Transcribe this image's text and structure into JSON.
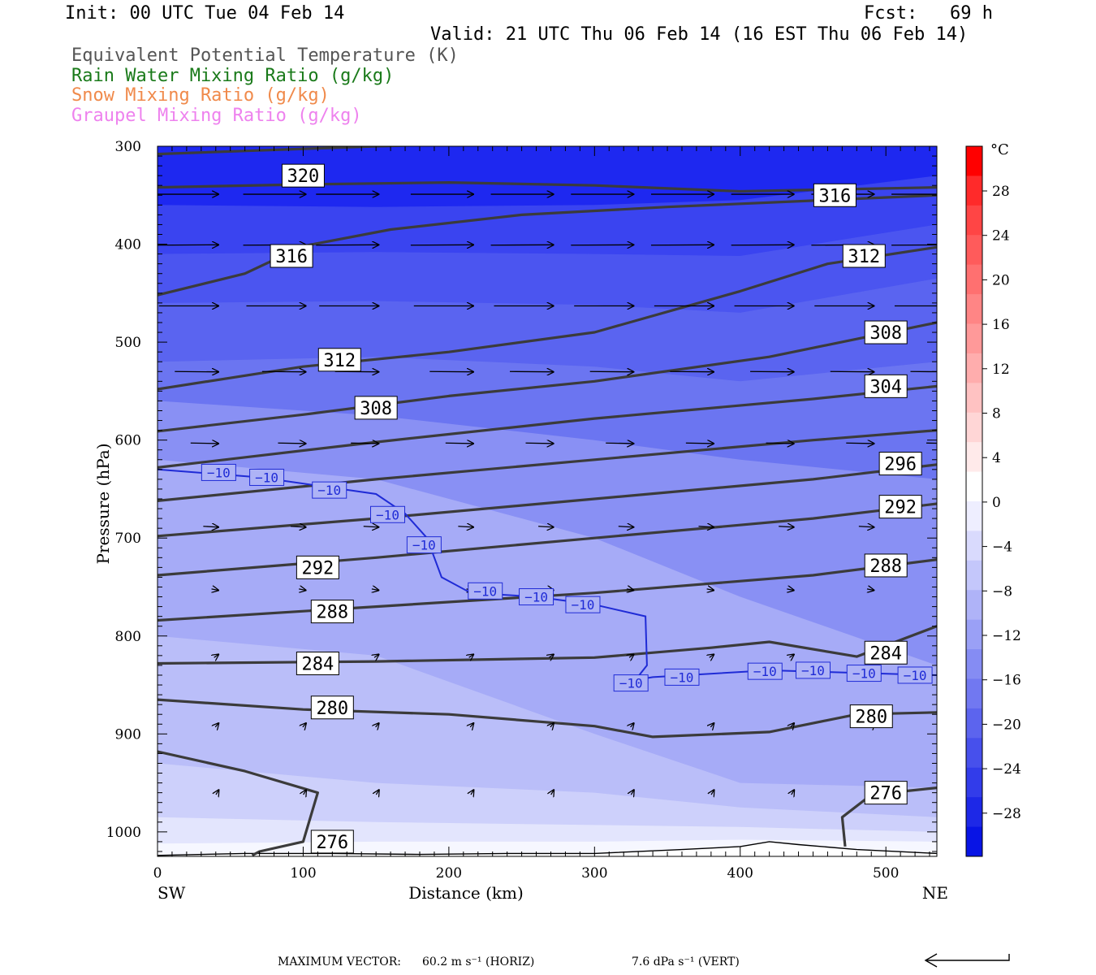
{
  "header": {
    "init": "Init: 00 UTC Tue 04 Feb 14",
    "fcst": "Fcst:   69 h",
    "valid": "Valid: 21 UTC Thu 06 Feb 14 (16 EST Thu 06 Feb 14)"
  },
  "legend": [
    {
      "label": "Equivalent Potential Temperature (K)",
      "color": "#444444"
    },
    {
      "label": "Rain Water Mixing Ratio (g/kg)",
      "color": "#1a7a1a"
    },
    {
      "label": "Snow Mixing Ratio (g/kg)",
      "color": "#f08a4b"
    },
    {
      "label": "Graupel Mixing Ratio (g/kg)",
      "color": "#ee82ee"
    }
  ],
  "colorbar": {
    "unit": "°C",
    "labels": [
      "28",
      "24",
      "20",
      "16",
      "12",
      "8",
      "4",
      "0",
      "−4",
      "−8",
      "−12",
      "−16",
      "−20",
      "−24",
      "−28"
    ]
  },
  "footer": {
    "max_vector_label": "MAXIMUM VECTOR:",
    "horiz": "60.2 m s⁻¹ (HORIZ)",
    "vert": "7.6 dPa s⁻¹ (VERT)"
  },
  "chart_data": {
    "type": "contour",
    "xlabel": "Distance (km)",
    "ylabel": "Pressure (hPa)",
    "xlim": [
      0,
      535
    ],
    "ylim": [
      1025,
      300
    ],
    "x_ticks": [
      "0",
      "100",
      "200",
      "300",
      "400",
      "500"
    ],
    "y_ticks": [
      "300",
      "400",
      "500",
      "600",
      "700",
      "800",
      "900",
      "1000"
    ],
    "x_end_labels": {
      "left": "SW",
      "right": "NE"
    },
    "theta_e_contours": [
      {
        "value": 320,
        "points": [
          [
            0,
            308
          ],
          [
            150,
            300
          ],
          [
            300,
            294
          ],
          [
            450,
            290
          ],
          [
            535,
            284
          ]
        ],
        "labels": [
          {
            "text": "320",
            "x": 100,
            "p": 330
          }
        ]
      },
      {
        "value": 316,
        "points": [
          [
            0,
            342
          ],
          [
            100,
            339
          ],
          [
            200,
            337
          ],
          [
            300,
            340
          ],
          [
            400,
            346
          ],
          [
            535,
            342
          ]
        ],
        "labels": [
          {
            "text": "316",
            "x": 465,
            "p": 350
          }
        ]
      },
      {
        "value": 316,
        "points": [
          [
            0,
            452
          ],
          [
            60,
            430
          ],
          [
            100,
            402
          ],
          [
            160,
            385
          ],
          [
            250,
            370
          ],
          [
            350,
            362
          ],
          [
            535,
            350
          ]
        ],
        "labels": [
          {
            "text": "316",
            "x": 92,
            "p": 412
          }
        ]
      },
      {
        "value": 312,
        "points": [
          [
            0,
            548
          ],
          [
            100,
            525
          ],
          [
            200,
            510
          ],
          [
            300,
            490
          ],
          [
            400,
            448
          ],
          [
            460,
            420
          ],
          [
            535,
            403
          ]
        ],
        "labels": [
          {
            "text": "312",
            "x": 125,
            "p": 518
          },
          {
            "text": "312",
            "x": 485,
            "p": 412
          }
        ]
      },
      {
        "value": 308,
        "points": [
          [
            0,
            591
          ],
          [
            100,
            574
          ],
          [
            200,
            555
          ],
          [
            300,
            540
          ],
          [
            420,
            515
          ],
          [
            535,
            480
          ]
        ],
        "labels": [
          {
            "text": "308",
            "x": 150,
            "p": 567
          },
          {
            "text": "308",
            "x": 500,
            "p": 490
          }
        ]
      },
      {
        "value": 304,
        "points": [
          [
            0,
            628
          ],
          [
            150,
            602
          ],
          [
            300,
            578
          ],
          [
            450,
            558
          ],
          [
            535,
            545
          ]
        ],
        "labels": [
          {
            "text": "304",
            "x": 500,
            "p": 545
          }
        ]
      },
      {
        "value": 300,
        "points": [
          [
            0,
            662
          ],
          [
            150,
            640
          ],
          [
            300,
            620
          ],
          [
            450,
            600
          ],
          [
            535,
            590
          ]
        ],
        "labels": []
      },
      {
        "value": 296,
        "points": [
          [
            0,
            698
          ],
          [
            150,
            680
          ],
          [
            300,
            660
          ],
          [
            450,
            640
          ],
          [
            535,
            625
          ]
        ],
        "labels": [
          {
            "text": "296",
            "x": 510,
            "p": 624
          }
        ]
      },
      {
        "value": 292,
        "points": [
          [
            0,
            738
          ],
          [
            150,
            720
          ],
          [
            300,
            700
          ],
          [
            450,
            680
          ],
          [
            535,
            665
          ]
        ],
        "labels": [
          {
            "text": "292",
            "x": 110,
            "p": 730
          },
          {
            "text": "292",
            "x": 510,
            "p": 668
          }
        ]
      },
      {
        "value": 288,
        "points": [
          [
            0,
            784
          ],
          [
            150,
            770
          ],
          [
            300,
            756
          ],
          [
            450,
            738
          ],
          [
            535,
            722
          ]
        ],
        "labels": [
          {
            "text": "288",
            "x": 120,
            "p": 775
          },
          {
            "text": "288",
            "x": 500,
            "p": 728
          }
        ]
      },
      {
        "value": 284,
        "points": [
          [
            0,
            828
          ],
          [
            150,
            826
          ],
          [
            300,
            822
          ],
          [
            380,
            812
          ],
          [
            420,
            806
          ],
          [
            480,
            821
          ],
          [
            535,
            790
          ]
        ],
        "labels": [
          {
            "text": "284",
            "x": 110,
            "p": 828
          },
          {
            "text": "284",
            "x": 500,
            "p": 817
          }
        ]
      },
      {
        "value": 280,
        "points": [
          [
            0,
            865
          ],
          [
            100,
            875
          ],
          [
            200,
            880
          ],
          [
            300,
            892
          ],
          [
            340,
            903
          ],
          [
            420,
            898
          ],
          [
            480,
            880
          ],
          [
            535,
            878
          ]
        ],
        "labels": [
          {
            "text": "280",
            "x": 120,
            "p": 873
          },
          {
            "text": "280",
            "x": 490,
            "p": 882
          }
        ]
      },
      {
        "value": 276,
        "points": [
          [
            0,
            918
          ],
          [
            60,
            938
          ],
          [
            110,
            960
          ],
          [
            100,
            1010
          ],
          [
            70,
            1020
          ],
          [
            65,
            1024
          ]
        ],
        "labels": [
          {
            "text": "276",
            "x": 120,
            "p": 1010
          }
        ]
      },
      {
        "value": 276,
        "points": [
          [
            472,
            1015
          ],
          [
            470,
            985
          ],
          [
            490,
            962
          ],
          [
            535,
            955
          ]
        ],
        "labels": [
          {
            "text": "276",
            "x": 500,
            "p": 960
          }
        ]
      }
    ],
    "temperature_contour": {
      "value": -10,
      "points": [
        [
          0,
          630
        ],
        [
          70,
          638
        ],
        [
          150,
          655
        ],
        [
          170,
          675
        ],
        [
          185,
          700
        ],
        [
          195,
          740
        ],
        [
          215,
          756
        ],
        [
          260,
          760
        ],
        [
          300,
          768
        ],
        [
          335,
          780
        ],
        [
          336,
          830
        ],
        [
          328,
          845
        ],
        [
          340,
          842
        ],
        [
          420,
          835
        ],
        [
          535,
          840
        ]
      ],
      "labels": [
        {
          "text": "−10",
          "x": 42,
          "p": 633
        },
        {
          "text": "−10",
          "x": 75,
          "p": 638
        },
        {
          "text": "−10",
          "x": 118,
          "p": 651
        },
        {
          "text": "−10",
          "x": 158,
          "p": 676
        },
        {
          "text": "−10",
          "x": 183,
          "p": 707
        },
        {
          "text": "−10",
          "x": 225,
          "p": 754
        },
        {
          "text": "−10",
          "x": 260,
          "p": 760
        },
        {
          "text": "−10",
          "x": 292,
          "p": 768
        },
        {
          "text": "−10",
          "x": 325,
          "p": 848
        },
        {
          "text": "−10",
          "x": 360,
          "p": 842
        },
        {
          "text": "−10",
          "x": 417,
          "p": 836
        },
        {
          "text": "−10",
          "x": 450,
          "p": 835
        },
        {
          "text": "−10",
          "x": 485,
          "p": 838
        },
        {
          "text": "−10",
          "x": 520,
          "p": 840
        }
      ]
    },
    "wind_rows": [
      {
        "p": 349,
        "u": 1.0,
        "v": 0.0
      },
      {
        "p": 401,
        "u": 1.0,
        "v": -0.02
      },
      {
        "p": 463,
        "u": 0.95,
        "v": 0.0
      },
      {
        "p": 530,
        "u": 0.7,
        "v": 0.02
      },
      {
        "p": 603,
        "u": 0.45,
        "v": 0.03
      },
      {
        "p": 688,
        "u": 0.25,
        "v": 0.05
      },
      {
        "p": 752,
        "u": 0.12,
        "v": 0.08
      },
      {
        "p": 822,
        "u": 0.08,
        "v": -0.2
      },
      {
        "p": 893,
        "u": 0.06,
        "v": -0.25
      },
      {
        "p": 962,
        "u": 0.05,
        "v": -0.3
      }
    ],
    "wind_x": [
      20,
      80,
      130,
      195,
      250,
      305,
      360,
      415,
      470,
      525
    ],
    "terrain_top": [
      [
        0,
        1024
      ],
      [
        60,
        1022
      ],
      [
        120,
        1022
      ],
      [
        180,
        1023
      ],
      [
        240,
        1022
      ],
      [
        300,
        1022
      ],
      [
        360,
        1018
      ],
      [
        400,
        1015
      ],
      [
        420,
        1010
      ],
      [
        440,
        1013
      ],
      [
        480,
        1018
      ],
      [
        535,
        1022
      ]
    ],
    "temperature_bands": [
      {
        "t": -32,
        "color": "#1e28f0",
        "top": [
          [
            0,
            300
          ],
          [
            535,
            300
          ]
        ],
        "bottom": [
          [
            0,
            360
          ],
          [
            150,
            362
          ],
          [
            300,
            360
          ],
          [
            400,
            355
          ],
          [
            535,
            330
          ]
        ]
      },
      {
        "t": -28,
        "color": "#3a44f0",
        "bottom": [
          [
            0,
            410
          ],
          [
            150,
            408
          ],
          [
            300,
            410
          ],
          [
            400,
            412
          ],
          [
            535,
            380
          ]
        ]
      },
      {
        "t": -24,
        "color": "#4b55f0",
        "bottom": [
          [
            0,
            460
          ],
          [
            150,
            458
          ],
          [
            300,
            462
          ],
          [
            400,
            470
          ],
          [
            535,
            435
          ]
        ]
      },
      {
        "t": -20,
        "color": "#5a64f0",
        "bottom": [
          [
            0,
            520
          ],
          [
            150,
            515
          ],
          [
            300,
            525
          ],
          [
            400,
            540
          ],
          [
            535,
            520
          ]
        ]
      },
      {
        "t": -16,
        "color": "#6b75f1",
        "bottom": [
          [
            0,
            560
          ],
          [
            150,
            575
          ],
          [
            300,
            600
          ],
          [
            400,
            620
          ],
          [
            535,
            640
          ]
        ]
      },
      {
        "t": -12,
        "color": "#8990f4",
        "bottom": [
          [
            0,
            620
          ],
          [
            150,
            640
          ],
          [
            300,
            700
          ],
          [
            400,
            760
          ],
          [
            535,
            830
          ]
        ]
      },
      {
        "t": -8,
        "color": "#a6abf7",
        "bottom": [
          [
            0,
            800
          ],
          [
            150,
            820
          ],
          [
            300,
            900
          ],
          [
            400,
            950
          ],
          [
            535,
            955
          ]
        ]
      },
      {
        "t": -6,
        "color": "#babef9",
        "bottom": [
          [
            0,
            930
          ],
          [
            150,
            950
          ],
          [
            300,
            960
          ],
          [
            400,
            975
          ],
          [
            535,
            985
          ]
        ]
      },
      {
        "t": -4,
        "color": "#cdd0fb",
        "bottom": [
          [
            0,
            985
          ],
          [
            150,
            990
          ],
          [
            300,
            993
          ],
          [
            400,
            995
          ],
          [
            535,
            1000
          ]
        ]
      },
      {
        "t": -2,
        "color": "#e3e5fd",
        "bottom": [
          [
            0,
            1012
          ],
          [
            150,
            1010
          ],
          [
            300,
            1010
          ],
          [
            400,
            1008
          ],
          [
            535,
            1010
          ]
        ]
      },
      {
        "t": 0,
        "color": "#f6f7ff",
        "bottom": [
          [
            0,
            1025
          ],
          [
            535,
            1025
          ]
        ]
      }
    ],
    "colorbar_colors": [
      "#ff0000",
      "#ff2a2a",
      "#ff4545",
      "#ff5b5b",
      "#ff7070",
      "#ff8585",
      "#ff9999",
      "#ffadad",
      "#ffc2c2",
      "#ffd6d6",
      "#ffeaea",
      "#ffffff",
      "#eeeeff",
      "#d9dafd",
      "#c4c7fb",
      "#afb3f8",
      "#9aa0f6",
      "#858cf3",
      "#7178f1",
      "#5c64ee",
      "#4750ec",
      "#323cea",
      "#1d28e7",
      "#0814e5"
    ]
  }
}
